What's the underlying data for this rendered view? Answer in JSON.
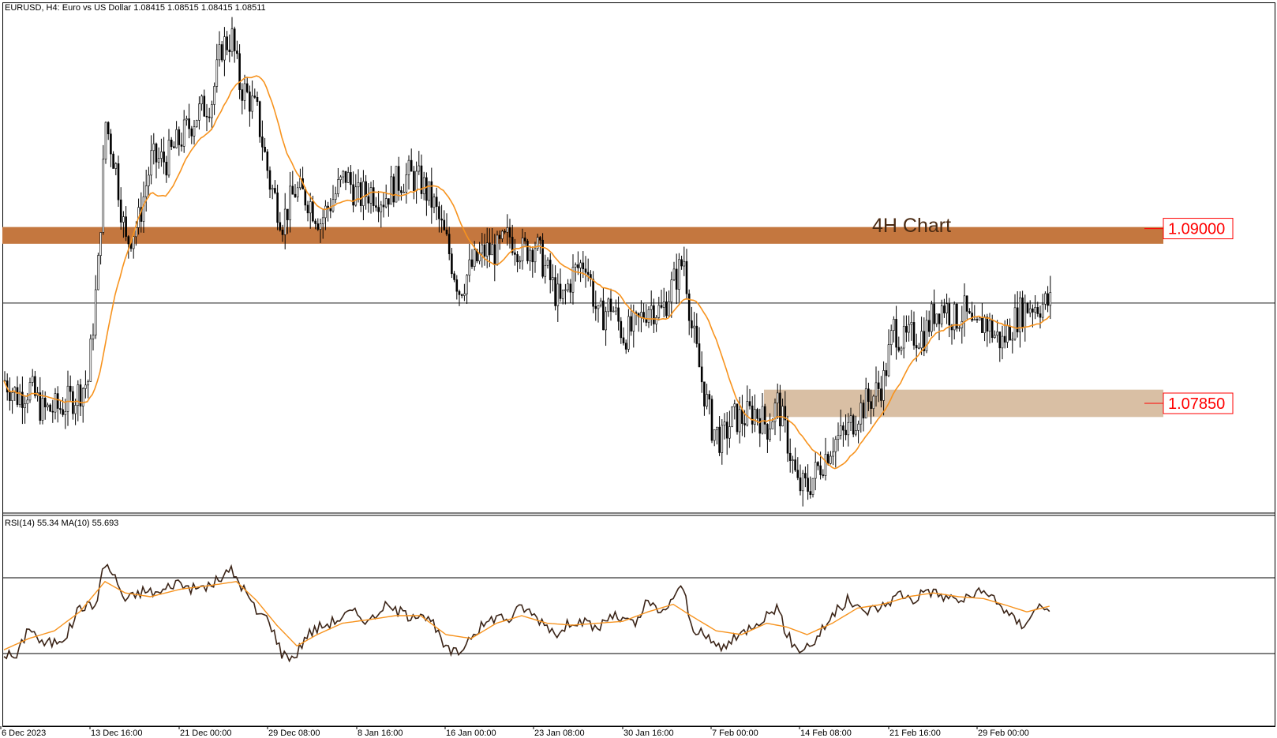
{
  "header": {
    "title": "EURUSD, H4:  Euro vs US Dollar  1.08415 1.08515 1.08415 1.08511"
  },
  "annotation": {
    "label": "4H Chart"
  },
  "rsi_panel": {
    "title": "RSI(14) 55.34 MA(10) 55.693"
  },
  "colors": {
    "background": "#ffffff",
    "candle": "#000000",
    "ma_line": "#f7931e",
    "rsi_line": "#3b2417",
    "resistance_band": "#c4773f",
    "support_band": "#d9bfa4",
    "level_label": "#ff0000",
    "annotation_text": "#4a2a12",
    "axis": "#000000",
    "current_price_line": "#000000"
  },
  "chart_data": [
    {
      "type": "candlestick",
      "title": "EURUSD, H4:  Euro vs US Dollar  1.08415 1.08515 1.08415 1.08511",
      "ylim": [
        1.0718,
        1.104
      ],
      "x_ticks": [
        "6 Dec 2023",
        "13 Dec 16:00",
        "21 Dec 00:00",
        "29 Dec 08:00",
        "8 Jan 16:00",
        "16 Jan 00:00",
        "23 Jan 08:00",
        "30 Jan 16:00",
        "7 Feb 00:00",
        "14 Feb 08:00",
        "21 Feb 16:00",
        "29 Feb 00:00"
      ],
      "grid": false,
      "current_price": 1.0851,
      "moving_average": "orange line",
      "zones": [
        {
          "label": "1.09000",
          "value": 1.09,
          "low": 1.089,
          "high": 1.0901,
          "color": "#c4773f"
        },
        {
          "label": "1.07850",
          "value": 1.0785,
          "low": 1.0776,
          "high": 1.0794,
          "color": "#d9bfa4"
        }
      ],
      "close_keypoints": [
        [
          0,
          1.08
        ],
        [
          5,
          1.079
        ],
        [
          10,
          1.0795
        ],
        [
          15,
          1.078
        ],
        [
          22,
          1.0782
        ],
        [
          28,
          1.079
        ],
        [
          33,
          1.08
        ],
        [
          37,
          1.0875
        ],
        [
          40,
          1.097
        ],
        [
          44,
          1.094
        ],
        [
          48,
          1.089
        ],
        [
          53,
          1.0905
        ],
        [
          58,
          1.0945
        ],
        [
          64,
          1.0945
        ],
        [
          70,
          1.096
        ],
        [
          76,
          1.0975
        ],
        [
          82,
          1.0985
        ],
        [
          86,
          1.102
        ],
        [
          90,
          1.1025
        ],
        [
          93,
          1.0995
        ],
        [
          97,
          1.0985
        ],
        [
          100,
          1.0975
        ],
        [
          105,
          1.093
        ],
        [
          110,
          1.0905
        ],
        [
          115,
          1.0925
        ],
        [
          120,
          1.092
        ],
        [
          125,
          1.0905
        ],
        [
          130,
          1.092
        ],
        [
          135,
          1.0935
        ],
        [
          140,
          1.092
        ],
        [
          145,
          1.0925
        ],
        [
          150,
          1.092
        ],
        [
          155,
          1.093
        ],
        [
          160,
          1.0935
        ],
        [
          165,
          1.093
        ],
        [
          170,
          1.0915
        ],
        [
          175,
          1.089
        ],
        [
          180,
          1.086
        ],
        [
          185,
          1.0875
        ],
        [
          190,
          1.0885
        ],
        [
          195,
          1.0885
        ],
        [
          200,
          1.0895
        ],
        [
          205,
          1.0885
        ],
        [
          210,
          1.089
        ],
        [
          215,
          1.087
        ],
        [
          220,
          1.085
        ],
        [
          225,
          1.087
        ],
        [
          230,
          1.088
        ],
        [
          235,
          1.084
        ],
        [
          240,
          1.085
        ],
        [
          245,
          1.083
        ],
        [
          250,
          1.0835
        ],
        [
          255,
          1.085
        ],
        [
          260,
          1.0845
        ],
        [
          265,
          1.0865
        ],
        [
          269,
          1.088
        ],
        [
          272,
          1.0835
        ],
        [
          276,
          1.08
        ],
        [
          280,
          1.077
        ],
        [
          284,
          1.076
        ],
        [
          288,
          1.0775
        ],
        [
          292,
          1.0775
        ],
        [
          297,
          1.078
        ],
        [
          302,
          1.077
        ],
        [
          306,
          1.0785
        ],
        [
          310,
          1.076
        ],
        [
          314,
          1.073
        ],
        [
          318,
          1.073
        ],
        [
          323,
          1.0745
        ],
        [
          328,
          1.076
        ],
        [
          333,
          1.0765
        ],
        [
          338,
          1.078
        ],
        [
          344,
          1.079
        ],
        [
          348,
          1.08
        ],
        [
          352,
          1.0835
        ],
        [
          356,
          1.0825
        ],
        [
          360,
          1.083
        ],
        [
          364,
          1.083
        ],
        [
          368,
          1.0845
        ],
        [
          372,
          1.085
        ],
        [
          376,
          1.084
        ],
        [
          380,
          1.0845
        ],
        [
          384,
          1.083
        ],
        [
          388,
          1.084
        ],
        [
          392,
          1.083
        ],
        [
          395,
          1.0825
        ],
        [
          398,
          1.0835
        ],
        [
          402,
          1.0845
        ],
        [
          406,
          1.085
        ],
        [
          410,
          1.085
        ],
        [
          414,
          1.0851
        ]
      ]
    },
    {
      "type": "line",
      "title": "RSI(14) 55.34 MA(10) 55.693",
      "ylim": [
        0,
        100
      ],
      "levels": [
        70,
        30
      ],
      "series": [
        {
          "name": "RSI(14)",
          "value": 55.34
        },
        {
          "name": "MA(10)",
          "value": 55.693
        }
      ],
      "rsi_keypoints": [
        [
          0,
          30
        ],
        [
          5,
          28
        ],
        [
          10,
          45
        ],
        [
          15,
          35
        ],
        [
          20,
          36
        ],
        [
          25,
          40
        ],
        [
          30,
          55
        ],
        [
          36,
          55
        ],
        [
          40,
          78
        ],
        [
          44,
          70
        ],
        [
          48,
          58
        ],
        [
          55,
          63
        ],
        [
          62,
          62
        ],
        [
          68,
          68
        ],
        [
          75,
          64
        ],
        [
          82,
          66
        ],
        [
          90,
          74
        ],
        [
          95,
          64
        ],
        [
          100,
          52
        ],
        [
          105,
          48
        ],
        [
          110,
          30
        ],
        [
          115,
          28
        ],
        [
          120,
          40
        ],
        [
          125,
          44
        ],
        [
          132,
          48
        ],
        [
          138,
          52
        ],
        [
          145,
          47
        ],
        [
          150,
          55
        ],
        [
          155,
          53
        ],
        [
          160,
          50
        ],
        [
          165,
          52
        ],
        [
          170,
          45
        ],
        [
          175,
          32
        ],
        [
          180,
          30
        ],
        [
          185,
          40
        ],
        [
          190,
          45
        ],
        [
          195,
          50
        ],
        [
          200,
          48
        ],
        [
          205,
          55
        ],
        [
          210,
          50
        ],
        [
          215,
          45
        ],
        [
          220,
          40
        ],
        [
          225,
          48
        ],
        [
          230,
          46
        ],
        [
          235,
          43
        ],
        [
          240,
          50
        ],
        [
          245,
          48
        ],
        [
          250,
          45
        ],
        [
          255,
          58
        ],
        [
          260,
          50
        ],
        [
          265,
          60
        ],
        [
          269,
          65
        ],
        [
          272,
          45
        ],
        [
          278,
          38
        ],
        [
          284,
          33
        ],
        [
          290,
          38
        ],
        [
          296,
          45
        ],
        [
          302,
          50
        ],
        [
          306,
          55
        ],
        [
          310,
          40
        ],
        [
          314,
          32
        ],
        [
          320,
          35
        ],
        [
          328,
          50
        ],
        [
          334,
          58
        ],
        [
          340,
          52
        ],
        [
          348,
          55
        ],
        [
          355,
          62
        ],
        [
          360,
          58
        ],
        [
          365,
          64
        ],
        [
          372,
          60
        ],
        [
          380,
          58
        ],
        [
          385,
          62
        ],
        [
          392,
          60
        ],
        [
          398,
          50
        ],
        [
          403,
          45
        ],
        [
          410,
          55
        ],
        [
          414,
          55
        ]
      ],
      "ma_keypoints": [
        [
          0,
          32
        ],
        [
          10,
          38
        ],
        [
          20,
          42
        ],
        [
          30,
          52
        ],
        [
          40,
          68
        ],
        [
          48,
          62
        ],
        [
          58,
          60
        ],
        [
          70,
          64
        ],
        [
          82,
          66
        ],
        [
          92,
          68
        ],
        [
          100,
          58
        ],
        [
          108,
          45
        ],
        [
          116,
          34
        ],
        [
          124,
          40
        ],
        [
          134,
          46
        ],
        [
          145,
          48
        ],
        [
          155,
          50
        ],
        [
          165,
          50
        ],
        [
          175,
          40
        ],
        [
          185,
          38
        ],
        [
          195,
          46
        ],
        [
          205,
          50
        ],
        [
          215,
          46
        ],
        [
          225,
          45
        ],
        [
          235,
          46
        ],
        [
          245,
          47
        ],
        [
          255,
          52
        ],
        [
          265,
          56
        ],
        [
          272,
          50
        ],
        [
          282,
          42
        ],
        [
          292,
          40
        ],
        [
          302,
          46
        ],
        [
          310,
          44
        ],
        [
          318,
          40
        ],
        [
          328,
          46
        ],
        [
          338,
          54
        ],
        [
          348,
          56
        ],
        [
          358,
          60
        ],
        [
          368,
          62
        ],
        [
          378,
          60
        ],
        [
          388,
          59
        ],
        [
          398,
          55
        ],
        [
          405,
          52
        ],
        [
          414,
          55
        ]
      ]
    }
  ]
}
